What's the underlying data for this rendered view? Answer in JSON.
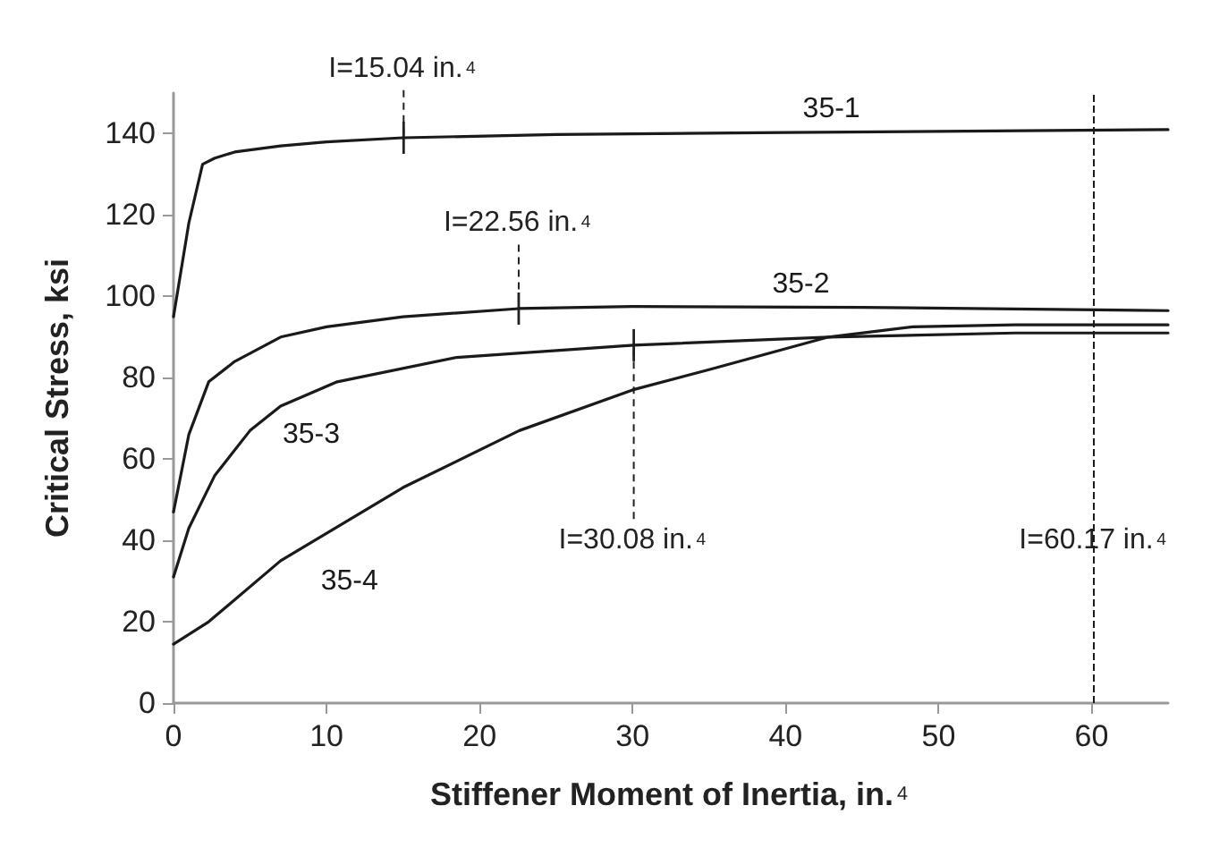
{
  "chart_data": {
    "type": "line",
    "xlabel": "Stiffener Moment of Inertia, in.$^{4}$",
    "ylabel": "Critical Stress, ksi",
    "xlim": [
      0,
      65
    ],
    "xticks": [
      0,
      10,
      20,
      30,
      40,
      50,
      60
    ],
    "ylim": [
      0,
      150
    ],
    "yticks": [
      0,
      20,
      40,
      60,
      80,
      100,
      120,
      140
    ],
    "grid": false,
    "legend": false,
    "marker": "none",
    "line_style": "solid",
    "series": [
      {
        "name": "35-1",
        "color": "#1a1a1a",
        "x": [
          0,
          1,
          1.9,
          2.7,
          4,
          7,
          10,
          15,
          25,
          40,
          65
        ],
        "values": [
          95,
          118,
          132.5,
          134,
          135.5,
          137,
          138,
          139,
          139.8,
          140.3,
          141
        ]
      },
      {
        "name": "35-2",
        "color": "#1a1a1a",
        "x": [
          0,
          1,
          2.3,
          4,
          7,
          10,
          15,
          22.56,
          30,
          45,
          65
        ],
        "values": [
          47,
          66,
          79,
          84,
          90,
          92.5,
          95,
          97,
          97.5,
          97.3,
          96.5
        ]
      },
      {
        "name": "35-3",
        "color": "#1a1a1a",
        "x": [
          0,
          1,
          2.7,
          5,
          7,
          10.7,
          18.5,
          30.08,
          42.8,
          55,
          65
        ],
        "values": [
          31,
          43,
          56,
          67,
          73,
          79,
          85,
          88,
          90,
          91,
          91
        ]
      },
      {
        "name": "35-4",
        "color": "#1a1a1a",
        "x": [
          0,
          2.3,
          7,
          15,
          22.6,
          30,
          35,
          42.8,
          48.3,
          55,
          65
        ],
        "values": [
          14.5,
          20,
          35,
          53,
          67,
          77,
          82,
          90,
          92.5,
          93,
          93
        ]
      }
    ],
    "annotations": [
      {
        "text": "I=15.04 in.$^{4}$",
        "x": 15.04,
        "y": 139
      },
      {
        "text": "I=22.56 in.$^{4}$",
        "x": 22.56,
        "y": 97
      },
      {
        "text": "I=30.08 in.$^{4}$",
        "x": 30.08,
        "y": 88
      }
    ],
    "ref_lines": [
      {
        "axis": "x",
        "value": 60.17,
        "label": "I=60.17 in.$^{4}$",
        "line_style": "dashed",
        "color": "#1a1a1a"
      }
    ]
  }
}
